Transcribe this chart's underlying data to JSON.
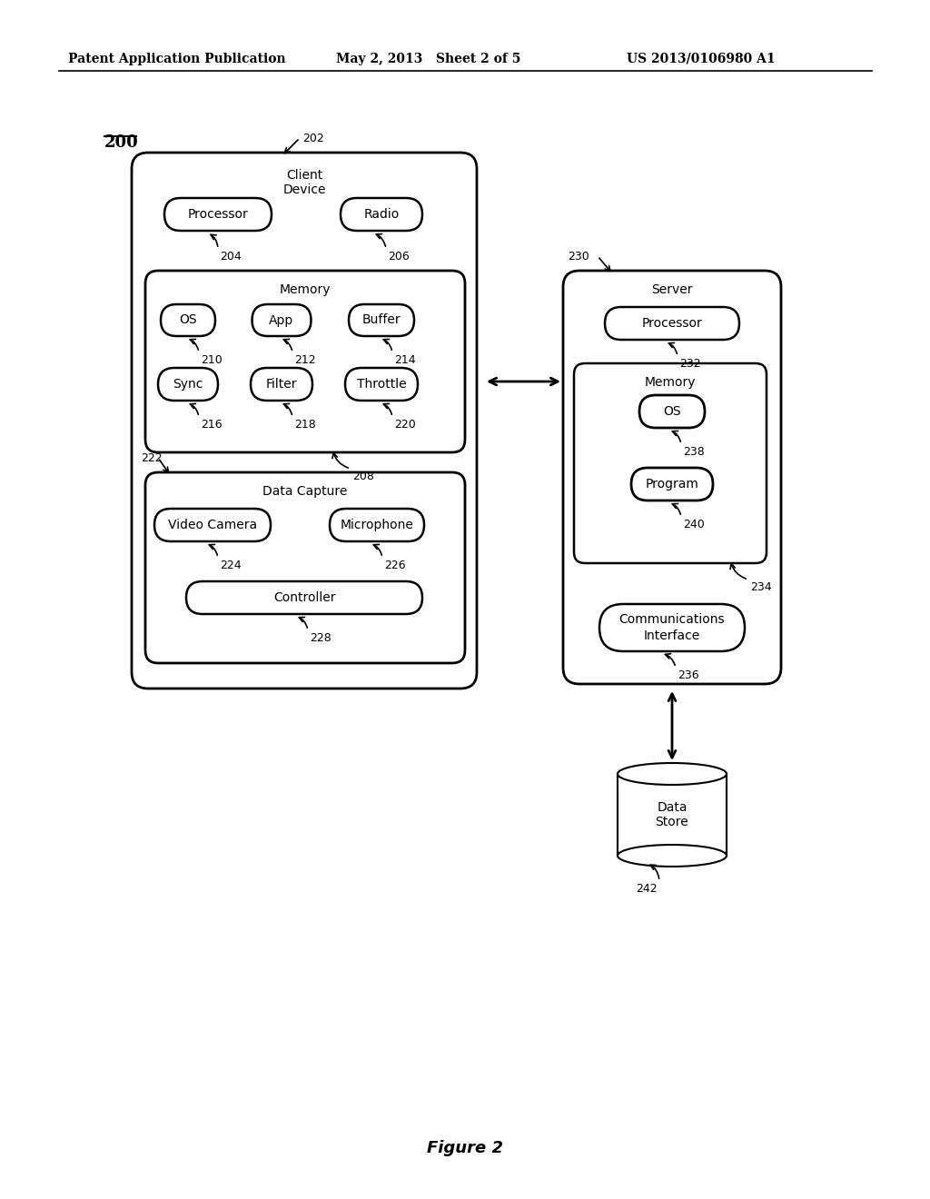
{
  "bg_color": "#ffffff",
  "header_left": "Patent Application Publication",
  "header_mid": "May 2, 2013   Sheet 2 of 5",
  "header_right": "US 2013/0106980 A1",
  "fig_label": "Figure 2",
  "main_label": "200",
  "client_device_label": "202",
  "client_device_title": "Client\nDevice",
  "processor_client": "Processor",
  "processor_client_num": "204",
  "radio_client": "Radio",
  "radio_client_num": "206",
  "memory_label": "208",
  "memory_title": "Memory",
  "os_label": "210",
  "os_title": "OS",
  "app_label": "212",
  "app_title": "App",
  "buffer_label": "214",
  "buffer_title": "Buffer",
  "sync_label": "216",
  "sync_title": "Sync",
  "filter_label": "218",
  "filter_title": "Filter",
  "throttle_label": "220",
  "throttle_title": "Throttle",
  "data_capture_label": "222",
  "data_capture_box_label": "Data Capture",
  "video_camera_label": "224",
  "video_camera_title": "Video Camera",
  "microphone_label": "226",
  "microphone_title": "Microphone",
  "controller_label": "228",
  "controller_title": "Controller",
  "server_label": "230",
  "server_title": "Server",
  "processor_server": "Processor",
  "processor_server_num": "232",
  "memory_server_label": "234",
  "memory_server_title": "Memory",
  "os_server_label": "238",
  "os_server_title": "OS",
  "program_label": "240",
  "program_title": "Program",
  "comm_label": "236",
  "comm_title": "Communications\nInterface",
  "datastore_label": "242",
  "datastore_title": "Data\nStore"
}
